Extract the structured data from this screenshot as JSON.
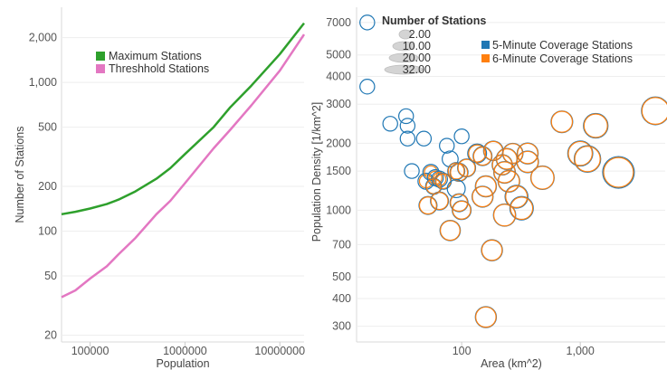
{
  "chart_data": [
    {
      "type": "line",
      "xlabel": "Population",
      "ylabel": "Number of Stations",
      "xscale": "log",
      "yscale": "log",
      "xlim": [
        50000,
        18000000
      ],
      "ylim": [
        18,
        3200
      ],
      "x_ticks": [
        100000,
        1000000,
        10000000
      ],
      "x_tick_labels": [
        "100000",
        "1000000",
        "10000000"
      ],
      "y_ticks": [
        20,
        50,
        100,
        200,
        500,
        1000,
        2000
      ],
      "y_tick_labels": [
        "20",
        "50",
        "100",
        "200",
        "500",
        "1,000",
        "2,000"
      ],
      "legend_position": "top-left",
      "series": [
        {
          "name": "Maximum Stations",
          "color": "#2ea02c",
          "x": [
            50000,
            70000,
            100000,
            150000,
            200000,
            300000,
            500000,
            700000,
            1000000,
            2000000,
            3000000,
            5000000,
            10000000,
            18000000
          ],
          "y": [
            130,
            135,
            142,
            152,
            163,
            185,
            225,
            265,
            330,
            500,
            680,
            950,
            1550,
            2500
          ]
        },
        {
          "name": "Threshhold Stations",
          "color": "#e377c2",
          "x": [
            50000,
            70000,
            100000,
            150000,
            200000,
            300000,
            500000,
            700000,
            1000000,
            2000000,
            3000000,
            5000000,
            10000000,
            18000000
          ],
          "y": [
            36,
            40,
            48,
            58,
            70,
            90,
            130,
            160,
            210,
            360,
            480,
            700,
            1200,
            2100
          ]
        }
      ]
    },
    {
      "type": "scatter",
      "xlabel": "Area (km^2)",
      "ylabel": "Population Density [1/km^2]",
      "xscale": "log",
      "yscale": "log",
      "xlim": [
        13,
        5200
      ],
      "ylim": [
        255,
        8200
      ],
      "x_ticks": [
        100,
        1000
      ],
      "x_tick_labels": [
        "100",
        "1,000"
      ],
      "y_ticks": [
        300,
        400,
        500,
        700,
        1000,
        1500,
        2000,
        3000,
        4000,
        5000,
        7000
      ],
      "y_tick_labels": [
        "300",
        "400",
        "500",
        "700",
        "1000",
        "1500",
        "2000",
        "3000",
        "4000",
        "5000",
        "7000"
      ],
      "size_legend_title": "Number of Stations",
      "size_legend_values": [
        "2.00",
        "10.00",
        "20.00",
        "32.00"
      ],
      "legend_position": "top-right",
      "series": [
        {
          "name": "5-Minute Coverage Stations",
          "color": "#1f77b4"
        },
        {
          "name": "6-Minute Coverage Stations",
          "color": "#ff7f0e"
        }
      ],
      "points": [
        {
          "area": 16,
          "density": 7000,
          "s5": 2,
          "s6": 0
        },
        {
          "area": 16,
          "density": 3600,
          "s5": 2,
          "s6": 0
        },
        {
          "area": 25,
          "density": 2450,
          "s5": 2,
          "s6": 0
        },
        {
          "area": 34,
          "density": 2650,
          "s5": 2,
          "s6": 0
        },
        {
          "area": 35,
          "density": 2400,
          "s5": 2,
          "s6": 0
        },
        {
          "area": 35,
          "density": 2100,
          "s5": 2,
          "s6": 0
        },
        {
          "area": 48,
          "density": 2100,
          "s5": 2,
          "s6": 0
        },
        {
          "area": 75,
          "density": 1950,
          "s5": 2,
          "s6": 0
        },
        {
          "area": 100,
          "density": 2150,
          "s5": 2,
          "s6": 0
        },
        {
          "area": 38,
          "density": 1500,
          "s5": 2,
          "s6": 0
        },
        {
          "area": 50,
          "density": 1350,
          "s5": 3,
          "s6": 1
        },
        {
          "area": 55,
          "density": 1480,
          "s5": 3,
          "s6": 1
        },
        {
          "area": 60,
          "density": 1400,
          "s5": 3,
          "s6": 1
        },
        {
          "area": 65,
          "density": 1380,
          "s5": 3,
          "s6": 1
        },
        {
          "area": 70,
          "density": 1350,
          "s5": 3,
          "s6": 2
        },
        {
          "area": 58,
          "density": 1280,
          "s5": 3,
          "s6": 2
        },
        {
          "area": 80,
          "density": 1700,
          "s5": 3,
          "s6": 0
        },
        {
          "area": 90,
          "density": 1500,
          "s5": 4,
          "s6": 3
        },
        {
          "area": 95,
          "density": 1480,
          "s5": 5,
          "s6": 4
        },
        {
          "area": 110,
          "density": 1550,
          "s5": 5,
          "s6": 4
        },
        {
          "area": 90,
          "density": 1250,
          "s5": 5,
          "s6": 0
        },
        {
          "area": 65,
          "density": 1100,
          "s5": 5,
          "s6": 4
        },
        {
          "area": 52,
          "density": 1050,
          "s5": 5,
          "s6": 4
        },
        {
          "area": 95,
          "density": 1080,
          "s5": 5,
          "s6": 4
        },
        {
          "area": 100,
          "density": 1000,
          "s5": 6,
          "s6": 5
        },
        {
          "area": 135,
          "density": 1800,
          "s5": 6,
          "s6": 4
        },
        {
          "area": 150,
          "density": 1750,
          "s5": 6,
          "s6": 5
        },
        {
          "area": 185,
          "density": 1850,
          "s5": 7,
          "s6": 6
        },
        {
          "area": 220,
          "density": 1600,
          "s5": 8,
          "s6": 7
        },
        {
          "area": 240,
          "density": 1700,
          "s5": 9,
          "s6": 8
        },
        {
          "area": 270,
          "density": 1800,
          "s5": 8,
          "s6": 7
        },
        {
          "area": 360,
          "density": 1800,
          "s5": 9,
          "s6": 8
        },
        {
          "area": 360,
          "density": 1650,
          "s5": 10,
          "s6": 9
        },
        {
          "area": 230,
          "density": 1480,
          "s5": 10,
          "s6": 9
        },
        {
          "area": 250,
          "density": 1350,
          "s5": 10,
          "s6": 9
        },
        {
          "area": 160,
          "density": 1280,
          "s5": 9,
          "s6": 8
        },
        {
          "area": 150,
          "density": 1150,
          "s5": 9,
          "s6": 8
        },
        {
          "area": 290,
          "density": 1150,
          "s5": 12,
          "s6": 10
        },
        {
          "area": 480,
          "density": 1400,
          "s5": 13,
          "s6": 12
        },
        {
          "area": 320,
          "density": 1020,
          "s5": 13,
          "s6": 11
        },
        {
          "area": 230,
          "density": 950,
          "s5": 11,
          "s6": 10
        },
        {
          "area": 80,
          "density": 810,
          "s5": 8,
          "s6": 7
        },
        {
          "area": 180,
          "density": 660,
          "s5": 9,
          "s6": 8
        },
        {
          "area": 160,
          "density": 330,
          "s5": 9,
          "s6": 8
        },
        {
          "area": 700,
          "density": 2500,
          "s5": 10,
          "s6": 9
        },
        {
          "area": 1350,
          "density": 2400,
          "s5": 15,
          "s6": 13
        },
        {
          "area": 1000,
          "density": 1800,
          "s5": 16,
          "s6": 14
        },
        {
          "area": 1150,
          "density": 1700,
          "s5": 19,
          "s6": 17
        },
        {
          "area": 2100,
          "density": 1480,
          "s5": 32,
          "s6": 27
        },
        {
          "area": 4300,
          "density": 2800,
          "s5": 22,
          "s6": 20
        }
      ]
    }
  ]
}
